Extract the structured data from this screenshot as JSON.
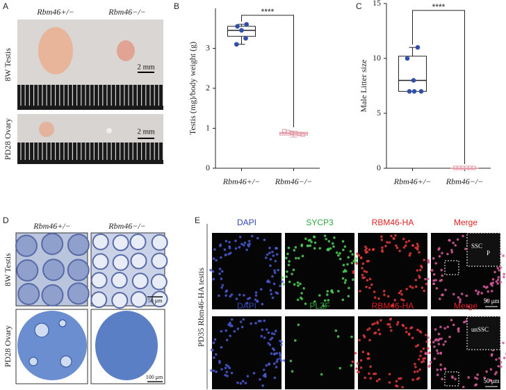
{
  "panels": {
    "A": {
      "letter": "A",
      "col_labels": [
        "Rbm46+/−",
        "Rbm46−/−"
      ],
      "row_labels": [
        "8W Testis",
        "PD28 Ovary"
      ],
      "scale_bars": [
        "2 mm",
        "2 mm"
      ]
    },
    "D": {
      "letter": "D",
      "col_labels": [
        "Rbm46+/−",
        "Rbm46−/−"
      ],
      "row_labels": [
        "8W Testis",
        "PD28 Ovary"
      ],
      "scale_bars": [
        "50 μm",
        "100 μm"
      ]
    },
    "E": {
      "letter": "E",
      "side_label": "PD35 Rbm46-HA testis",
      "rows": [
        {
          "channels": [
            "DAPI",
            "SYCP3",
            "RBM46-HA",
            "Merge"
          ],
          "inset_labels": [
            "SSC",
            "P"
          ],
          "scale_bar": "50 μm"
        },
        {
          "channels": [
            "DAPI",
            "PLZF",
            "RBM46-HA",
            "Merge"
          ],
          "inset_labels": [
            "unSSC"
          ],
          "scale_bar": "50 μm"
        }
      ]
    }
  },
  "chart_data": [
    {
      "panel": "B",
      "type": "box",
      "ylabel": "Testis (mg)/body weight (g)",
      "categories": [
        "Rbm46+/−",
        "Rbm46−/−"
      ],
      "ylim": [
        0,
        4
      ],
      "yticks": [
        0,
        1,
        2,
        3
      ],
      "significance": "****",
      "boxes": [
        {
          "min": 3.1,
          "q1": 3.3,
          "median": 3.45,
          "q3": 3.55,
          "max": 3.6
        },
        {
          "min": 0.78,
          "q1": 0.83,
          "median": 0.87,
          "q3": 0.9,
          "max": 0.92
        }
      ],
      "points": [
        [
          3.6,
          3.55,
          3.45,
          3.25,
          3.1
        ],
        [
          0.92,
          0.9,
          0.88,
          0.87,
          0.85,
          0.83
        ]
      ],
      "colors": [
        "#2f4fa8",
        "#e39aa6"
      ],
      "markers": [
        "circle",
        "square"
      ]
    },
    {
      "panel": "C",
      "type": "box",
      "ylabel": "Male Litter size",
      "categories": [
        "Rbm46+/−",
        "Rbm46−/−"
      ],
      "ylim": [
        0,
        15
      ],
      "yticks": [
        0,
        5,
        10,
        15
      ],
      "significance": "****",
      "boxes": [
        {
          "min": 7,
          "q1": 7,
          "median": 8,
          "q3": 10.2,
          "max": 11
        },
        {
          "min": 0,
          "q1": 0,
          "median": 0,
          "q3": 0,
          "max": 0
        }
      ],
      "points": [
        [
          11,
          10,
          8,
          7,
          7,
          7
        ],
        [
          0,
          0,
          0,
          0,
          0,
          0
        ]
      ],
      "colors": [
        "#2f4fa8",
        "#e39aa6"
      ],
      "markers": [
        "circle",
        "square"
      ]
    }
  ]
}
